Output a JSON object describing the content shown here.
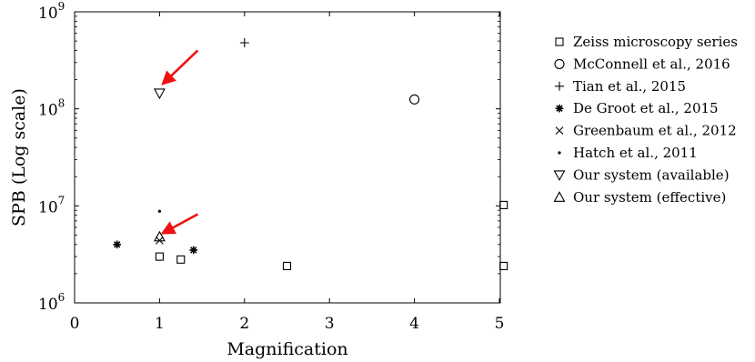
{
  "chart_data": {
    "type": "scatter",
    "title": "",
    "xlabel": "Magnification",
    "ylabel": "SPB (Log scale)",
    "xlim": [
      0,
      5.05
    ],
    "ylim": [
      1000000,
      1000000000
    ],
    "yscale": "log",
    "grid": false,
    "legend_position": "outside-right",
    "x_ticks": [
      {
        "value": 0,
        "label": "0"
      },
      {
        "value": 1,
        "label": "1"
      },
      {
        "value": 2,
        "label": "2"
      },
      {
        "value": 3,
        "label": "3"
      },
      {
        "value": 4,
        "label": "4"
      },
      {
        "value": 5,
        "label": "5"
      }
    ],
    "y_ticks": [
      {
        "value": 1000000,
        "base": "10",
        "exp": "6"
      },
      {
        "value": 10000000,
        "base": "10",
        "exp": "7"
      },
      {
        "value": 100000000,
        "base": "10",
        "exp": "8"
      },
      {
        "value": 1000000000,
        "base": "10",
        "exp": "9"
      }
    ],
    "series": [
      {
        "name": "Zeiss microscopy series",
        "marker": "square",
        "points": [
          [
            1,
            3000000
          ],
          [
            1.25,
            2800000
          ],
          [
            2.5,
            2400000
          ],
          [
            5.05,
            2400000
          ],
          [
            5.05,
            10200000
          ]
        ]
      },
      {
        "name": "McConnell et al., 2016",
        "marker": "circle",
        "points": [
          [
            4,
            125000000
          ]
        ]
      },
      {
        "name": "Tian et al., 2015",
        "marker": "plus",
        "points": [
          [
            2,
            480000000
          ]
        ]
      },
      {
        "name": "De Groot et al., 2015",
        "marker": "asterisk",
        "points": [
          [
            0.5,
            4000000
          ],
          [
            1.4,
            3500000
          ]
        ]
      },
      {
        "name": "Greenbaum et al., 2012",
        "marker": "cross",
        "points": [
          [
            1,
            4400000
          ]
        ]
      },
      {
        "name": "Hatch et al., 2011",
        "marker": "dot",
        "points": [
          [
            1,
            8800000
          ]
        ]
      },
      {
        "name": "Our system (available)",
        "marker": "triangle-down",
        "points": [
          [
            1,
            145000000
          ]
        ]
      },
      {
        "name": "Our system (effective)",
        "marker": "triangle-up",
        "points": [
          [
            1,
            4800000
          ]
        ]
      }
    ],
    "annotations": [
      {
        "type": "arrow",
        "color": "#ee1111",
        "from": [
          1.45,
          400000000
        ],
        "to": [
          1.05,
          185000000
        ]
      },
      {
        "type": "arrow",
        "color": "#ee1111",
        "from": [
          1.45,
          8200000
        ],
        "to": [
          1.05,
          5300000
        ]
      }
    ]
  }
}
